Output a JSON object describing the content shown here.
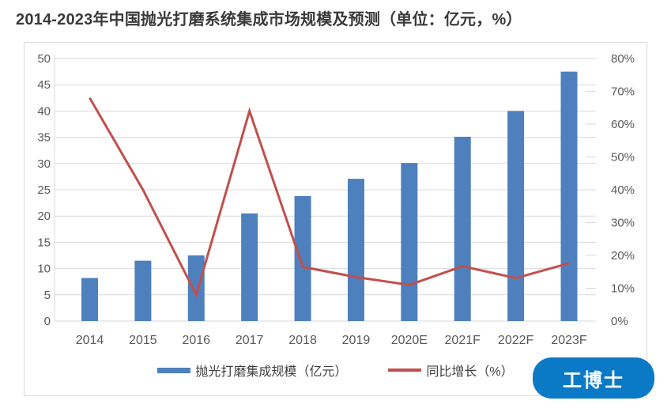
{
  "title": "2014-2023年中国抛光打磨系统集成市场规模及预测（单位：亿元，%）",
  "badge": {
    "label": "工博士",
    "color": "#0b7ac6"
  },
  "chart_data": {
    "type": "bar+line",
    "dual_axis": true,
    "categories": [
      "2014",
      "2015",
      "2016",
      "2017",
      "2018",
      "2019",
      "2020E",
      "2021F",
      "2022F",
      "2023F"
    ],
    "series": [
      {
        "name": "抛光打磨集成规模（亿元）",
        "type": "bar",
        "axis": "left",
        "color": "#4e80bd",
        "values": [
          8.2,
          11.5,
          12.5,
          20.5,
          23.8,
          27.1,
          30.1,
          35.1,
          40,
          47.5
        ]
      },
      {
        "name": "同比增长（%）",
        "type": "line",
        "axis": "right",
        "color": "#c0504d",
        "values": [
          68,
          40,
          8,
          64,
          16.5,
          13.4,
          11,
          16.7,
          13.1,
          17.6
        ]
      }
    ],
    "left_axis": {
      "min": 0,
      "max": 50,
      "step": 5,
      "ticks": [
        "0",
        "5",
        "10",
        "15",
        "20",
        "25",
        "30",
        "35",
        "40",
        "45",
        "50"
      ]
    },
    "right_axis": {
      "min": 0,
      "max": 80,
      "step": 10,
      "ticks": [
        "0%",
        "10%",
        "20%",
        "30%",
        "40%",
        "50%",
        "60%",
        "70%",
        "80%"
      ]
    },
    "grid": true,
    "grid_color": "#d9d9d9",
    "tick_color": "#595959",
    "legend_position": "bottom"
  }
}
